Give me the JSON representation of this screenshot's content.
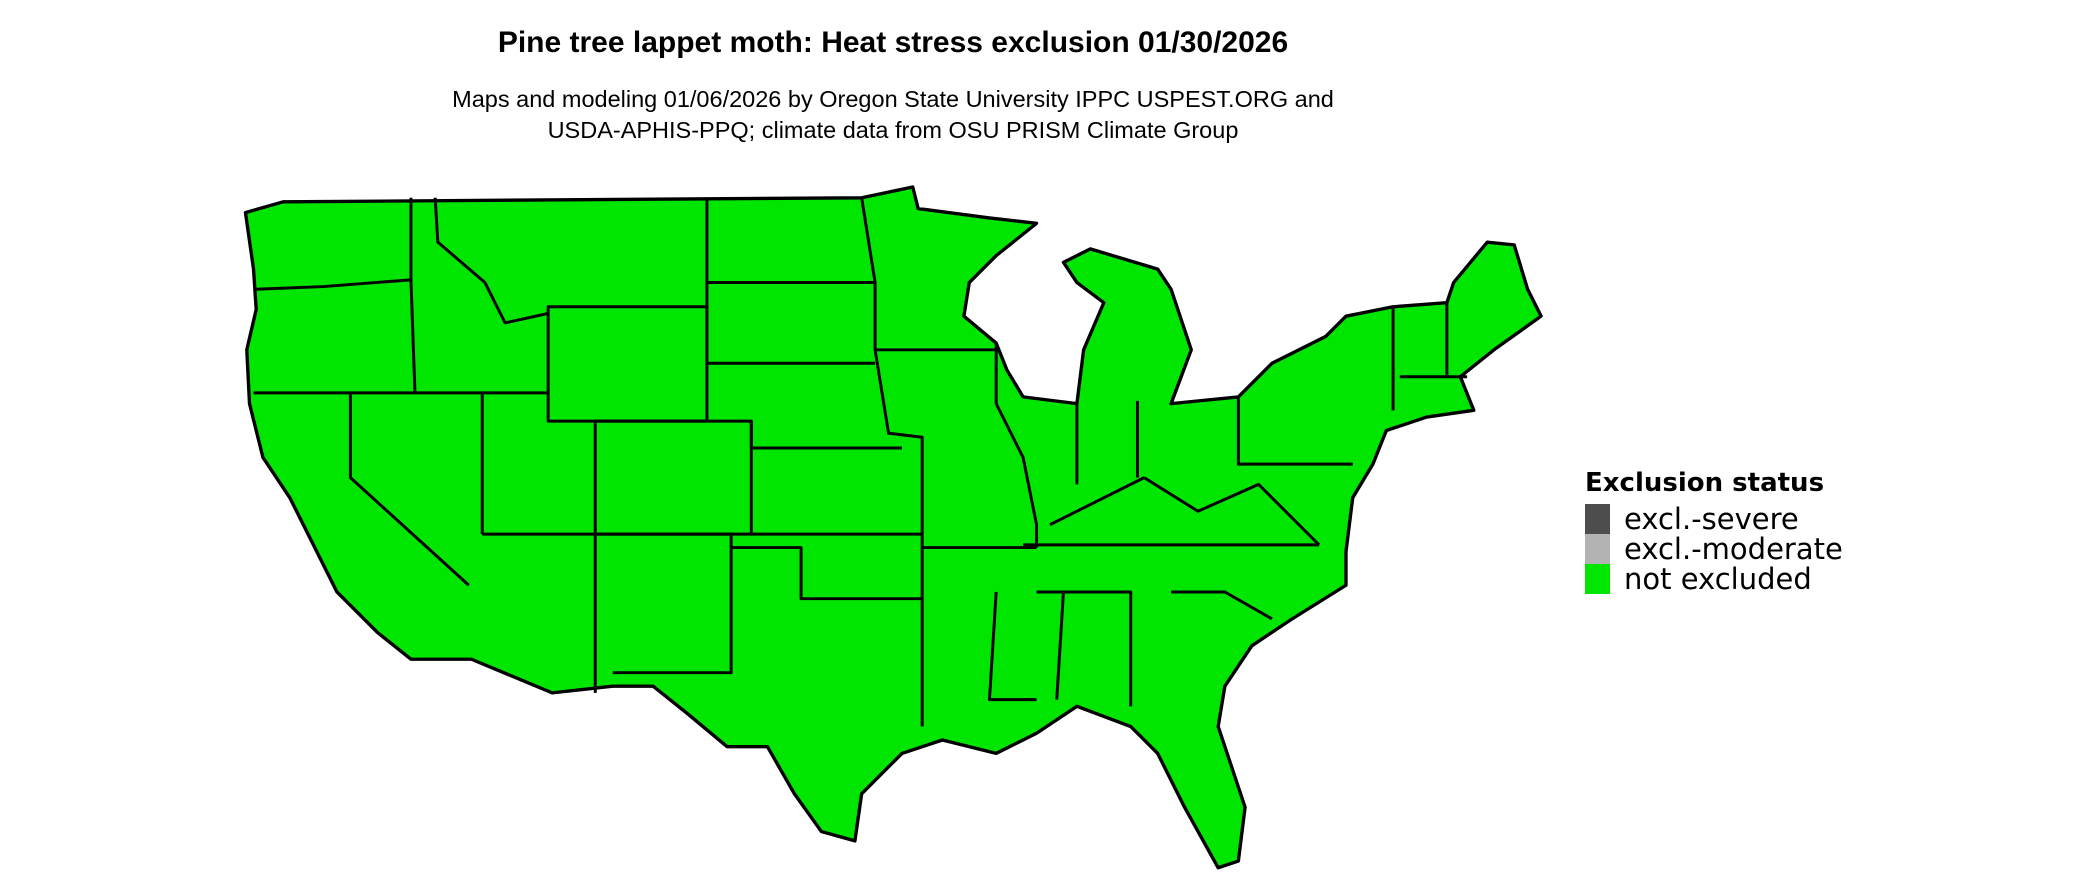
{
  "title": "Pine tree lappet moth: Heat stress exclusion 01/30/2026",
  "subtitle_line1": "Maps and modeling 01/06/2026 by Oregon State University IPPC USPEST.ORG and",
  "subtitle_line2": "USDA-APHIS-PPQ; climate data from OSU PRISM Climate Group",
  "legend": {
    "title": "Exclusion status",
    "items": [
      {
        "label": "excl.-severe",
        "color": "#4d4d4d"
      },
      {
        "label": "excl.-moderate",
        "color": "#b3b3b3"
      },
      {
        "label": "not excluded",
        "color": "#00e600"
      }
    ]
  },
  "map": {
    "region": "Contiguous United States",
    "fill_status": "not excluded",
    "fill_color": "#00e600"
  }
}
